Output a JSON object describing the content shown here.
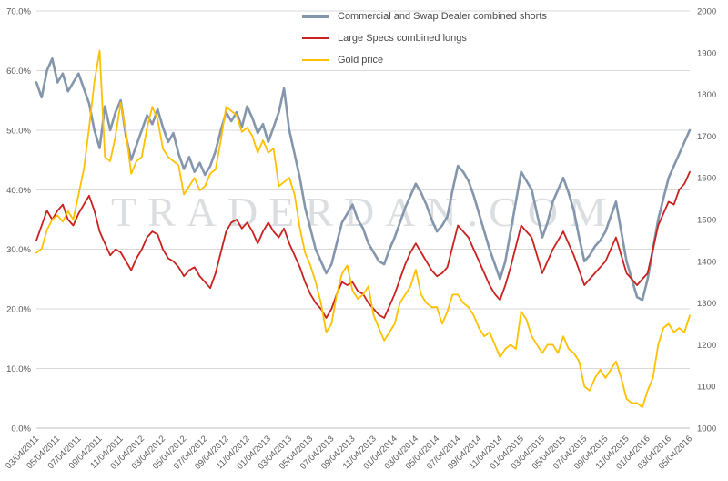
{
  "watermark": {
    "text": "TRADERDAN.COM"
  },
  "chart_data": {
    "type": "line",
    "title": "",
    "grid": "horizontal",
    "legend_position": "top-center",
    "style": {
      "grid_color": "#D9D9D9",
      "axis_color": "#BFBFBF",
      "text_color": "#595959",
      "background": "#FFFFFF"
    },
    "left_axis": {
      "min": 0,
      "max": 70,
      "tick_values": [
        0,
        10,
        20,
        30,
        40,
        50,
        60,
        70
      ],
      "tick_labels": [
        "0.0%",
        "10.0%",
        "20.0%",
        "30.0%",
        "40.0%",
        "50.0%",
        "60.0%",
        "70.0%"
      ]
    },
    "right_axis": {
      "min": 1000,
      "max": 2000,
      "tick_values": [
        1000,
        1100,
        1200,
        1300,
        1400,
        1500,
        1600,
        1700,
        1800,
        1900,
        2000
      ],
      "tick_labels": [
        "1000",
        "1100",
        "1200",
        "1300",
        "1400",
        "1500",
        "1600",
        "1700",
        "1800",
        "1900",
        "2000"
      ]
    },
    "x_axis": {
      "tick_step": 4,
      "tick_labels": [
        "03/04/2011",
        "05/04/2011",
        "07/04/2011",
        "09/04/2011",
        "11/04/2011",
        "01/04/2012",
        "03/04/2012",
        "05/04/2012",
        "07/04/2012",
        "09/04/2012",
        "11/04/2012",
        "01/04/2013",
        "03/04/2013",
        "05/04/2013",
        "07/04/2013",
        "09/04/2013",
        "11/04/2013",
        "01/04/2014",
        "03/04/2014",
        "05/04/2014",
        "07/04/2014",
        "09/04/2014",
        "11/04/2014",
        "01/04/2015",
        "03/04/2015",
        "05/04/2015",
        "07/04/2015",
        "09/04/2015",
        "11/04/2015",
        "01/04/2016",
        "03/04/2016",
        "05/04/2016"
      ]
    },
    "series": [
      {
        "name": "Commercial and Swap Dealer combined shorts",
        "color": "#8496AB",
        "width": 2.6,
        "axis": "left",
        "unit": "%",
        "values": [
          58,
          55.5,
          60,
          62,
          58,
          59.5,
          56.5,
          58,
          59.5,
          57,
          54.5,
          50,
          47,
          54,
          50,
          53,
          55,
          49,
          45,
          47.5,
          50,
          52.5,
          51,
          53.5,
          50.5,
          48,
          49.5,
          46,
          43.5,
          45.5,
          43,
          44.5,
          42.5,
          44,
          46.5,
          50,
          53,
          51.5,
          53,
          50.5,
          54,
          52,
          49.5,
          51,
          48,
          50.5,
          53,
          57,
          50,
          46,
          42,
          37,
          33.5,
          30,
          28,
          26,
          27.5,
          31,
          34.5,
          36,
          37.5,
          35,
          33.5,
          31,
          29.5,
          28,
          27.5,
          30,
          32,
          34.5,
          37,
          39,
          41,
          39.5,
          37.5,
          35,
          33,
          34,
          35.5,
          40,
          44,
          43,
          41.5,
          39,
          36,
          33,
          30,
          27.5,
          25,
          28,
          33,
          38,
          43,
          41.5,
          40,
          36,
          32,
          34.5,
          38,
          40,
          42,
          39.5,
          36.5,
          32,
          28,
          29,
          30.5,
          31.5,
          33,
          35.5,
          38,
          33,
          28,
          25,
          22,
          21.5,
          25,
          30,
          35,
          38.5,
          42,
          44,
          46,
          48,
          50
        ]
      },
      {
        "name": "Large Specs combined longs",
        "color": "#C9211E",
        "width": 1.8,
        "axis": "left",
        "unit": "%",
        "values": [
          31.5,
          34,
          36.5,
          35,
          36.5,
          37.5,
          35,
          34,
          36,
          37.5,
          39,
          36.5,
          33,
          31,
          29,
          30,
          29.5,
          28,
          26.5,
          28.5,
          30,
          32,
          33,
          32.5,
          30,
          28.5,
          28,
          27,
          25.5,
          26.5,
          27,
          25.5,
          24.5,
          23.5,
          26,
          29.5,
          33,
          34.5,
          35,
          33.5,
          34.5,
          33,
          31,
          33,
          34.5,
          33,
          32,
          33.5,
          31,
          29,
          27,
          24.5,
          22.5,
          21,
          20,
          18.5,
          20,
          22.5,
          24.5,
          24,
          24.5,
          23,
          22.5,
          21,
          20,
          19,
          18.5,
          20.5,
          22.5,
          25,
          27.5,
          29.5,
          31,
          29.5,
          28,
          26.5,
          25.5,
          26,
          27,
          30.5,
          34,
          33,
          32,
          30,
          28,
          26,
          24,
          22.5,
          21.5,
          24,
          27,
          30.5,
          34,
          33,
          32,
          29,
          26,
          28,
          30,
          31.5,
          33,
          31,
          29,
          26.5,
          24,
          25,
          26,
          27,
          28,
          30,
          32,
          29,
          26,
          25,
          24,
          25,
          26,
          30,
          34,
          36,
          38,
          37.5,
          40,
          41,
          43
        ]
      },
      {
        "name": "Gold price",
        "color": "#FFC000",
        "width": 1.8,
        "axis": "right",
        "unit": "USD",
        "values": [
          1420,
          1430,
          1475,
          1500,
          1510,
          1495,
          1520,
          1500,
          1560,
          1620,
          1720,
          1830,
          1905,
          1650,
          1640,
          1700,
          1780,
          1710,
          1610,
          1640,
          1650,
          1720,
          1770,
          1740,
          1670,
          1650,
          1640,
          1630,
          1560,
          1580,
          1600,
          1570,
          1580,
          1610,
          1620,
          1690,
          1770,
          1760,
          1750,
          1710,
          1720,
          1700,
          1660,
          1690,
          1660,
          1670,
          1580,
          1590,
          1600,
          1560,
          1480,
          1420,
          1390,
          1350,
          1300,
          1230,
          1250,
          1320,
          1370,
          1390,
          1330,
          1310,
          1320,
          1340,
          1270,
          1240,
          1210,
          1230,
          1250,
          1300,
          1320,
          1340,
          1380,
          1320,
          1300,
          1290,
          1290,
          1250,
          1280,
          1320,
          1320,
          1300,
          1290,
          1270,
          1240,
          1220,
          1230,
          1200,
          1170,
          1190,
          1200,
          1190,
          1280,
          1260,
          1220,
          1200,
          1180,
          1200,
          1200,
          1180,
          1220,
          1190,
          1180,
          1160,
          1100,
          1090,
          1120,
          1140,
          1120,
          1140,
          1160,
          1120,
          1070,
          1060,
          1060,
          1050,
          1090,
          1120,
          1200,
          1240,
          1250,
          1230,
          1240,
          1230,
          1270
        ]
      }
    ]
  }
}
